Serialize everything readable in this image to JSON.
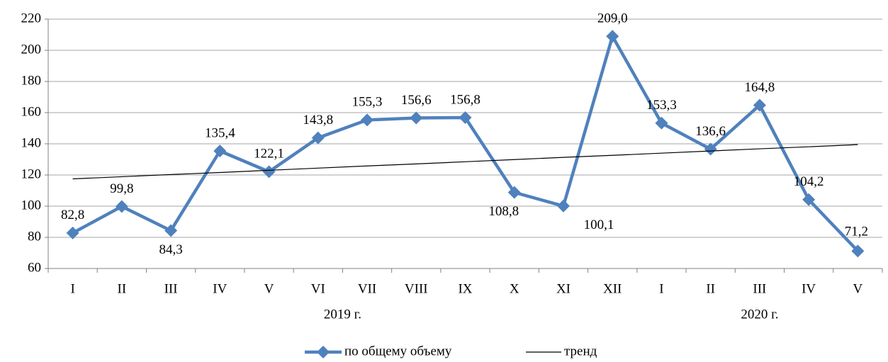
{
  "chart_data": {
    "type": "line",
    "categories": [
      "I",
      "II",
      "III",
      "IV",
      "V",
      "VI",
      "VII",
      "VIII",
      "IX",
      "X",
      "XI",
      "XII",
      "I",
      "II",
      "III",
      "IV",
      "V"
    ],
    "groups": [
      {
        "label": "2019 г.",
        "categories": 12
      },
      {
        "label": "2020 г.",
        "categories": 5
      }
    ],
    "series": [
      {
        "name": "по общему объему",
        "color": "#4f81bd",
        "values": [
          82.8,
          99.8,
          84.3,
          135.4,
          122.1,
          143.8,
          155.3,
          156.6,
          156.8,
          108.8,
          100.1,
          209.0,
          153.3,
          136.6,
          164.8,
          104.2,
          71.2
        ],
        "value_labels": [
          "82,8",
          "99,8",
          "84,3",
          "135,4",
          "122,1",
          "143,8",
          "155,3",
          "156,6",
          "156,8",
          "108,8",
          "100,1",
          "209,0",
          "153,3",
          "136,6",
          "164,8",
          "104,2",
          "71,2"
        ]
      },
      {
        "name": "тренд",
        "color": "#000000",
        "values": [
          117.5,
          118.9,
          120.3,
          121.6,
          123.0,
          124.4,
          125.8,
          127.1,
          128.5,
          129.9,
          131.3,
          132.6,
          134.0,
          135.4,
          136.8,
          138.1,
          139.5
        ]
      }
    ],
    "ylim": [
      60,
      220
    ],
    "yticks": [
      60,
      80,
      100,
      120,
      140,
      160,
      180,
      200,
      220
    ],
    "grid": true,
    "legend": "bottom"
  }
}
